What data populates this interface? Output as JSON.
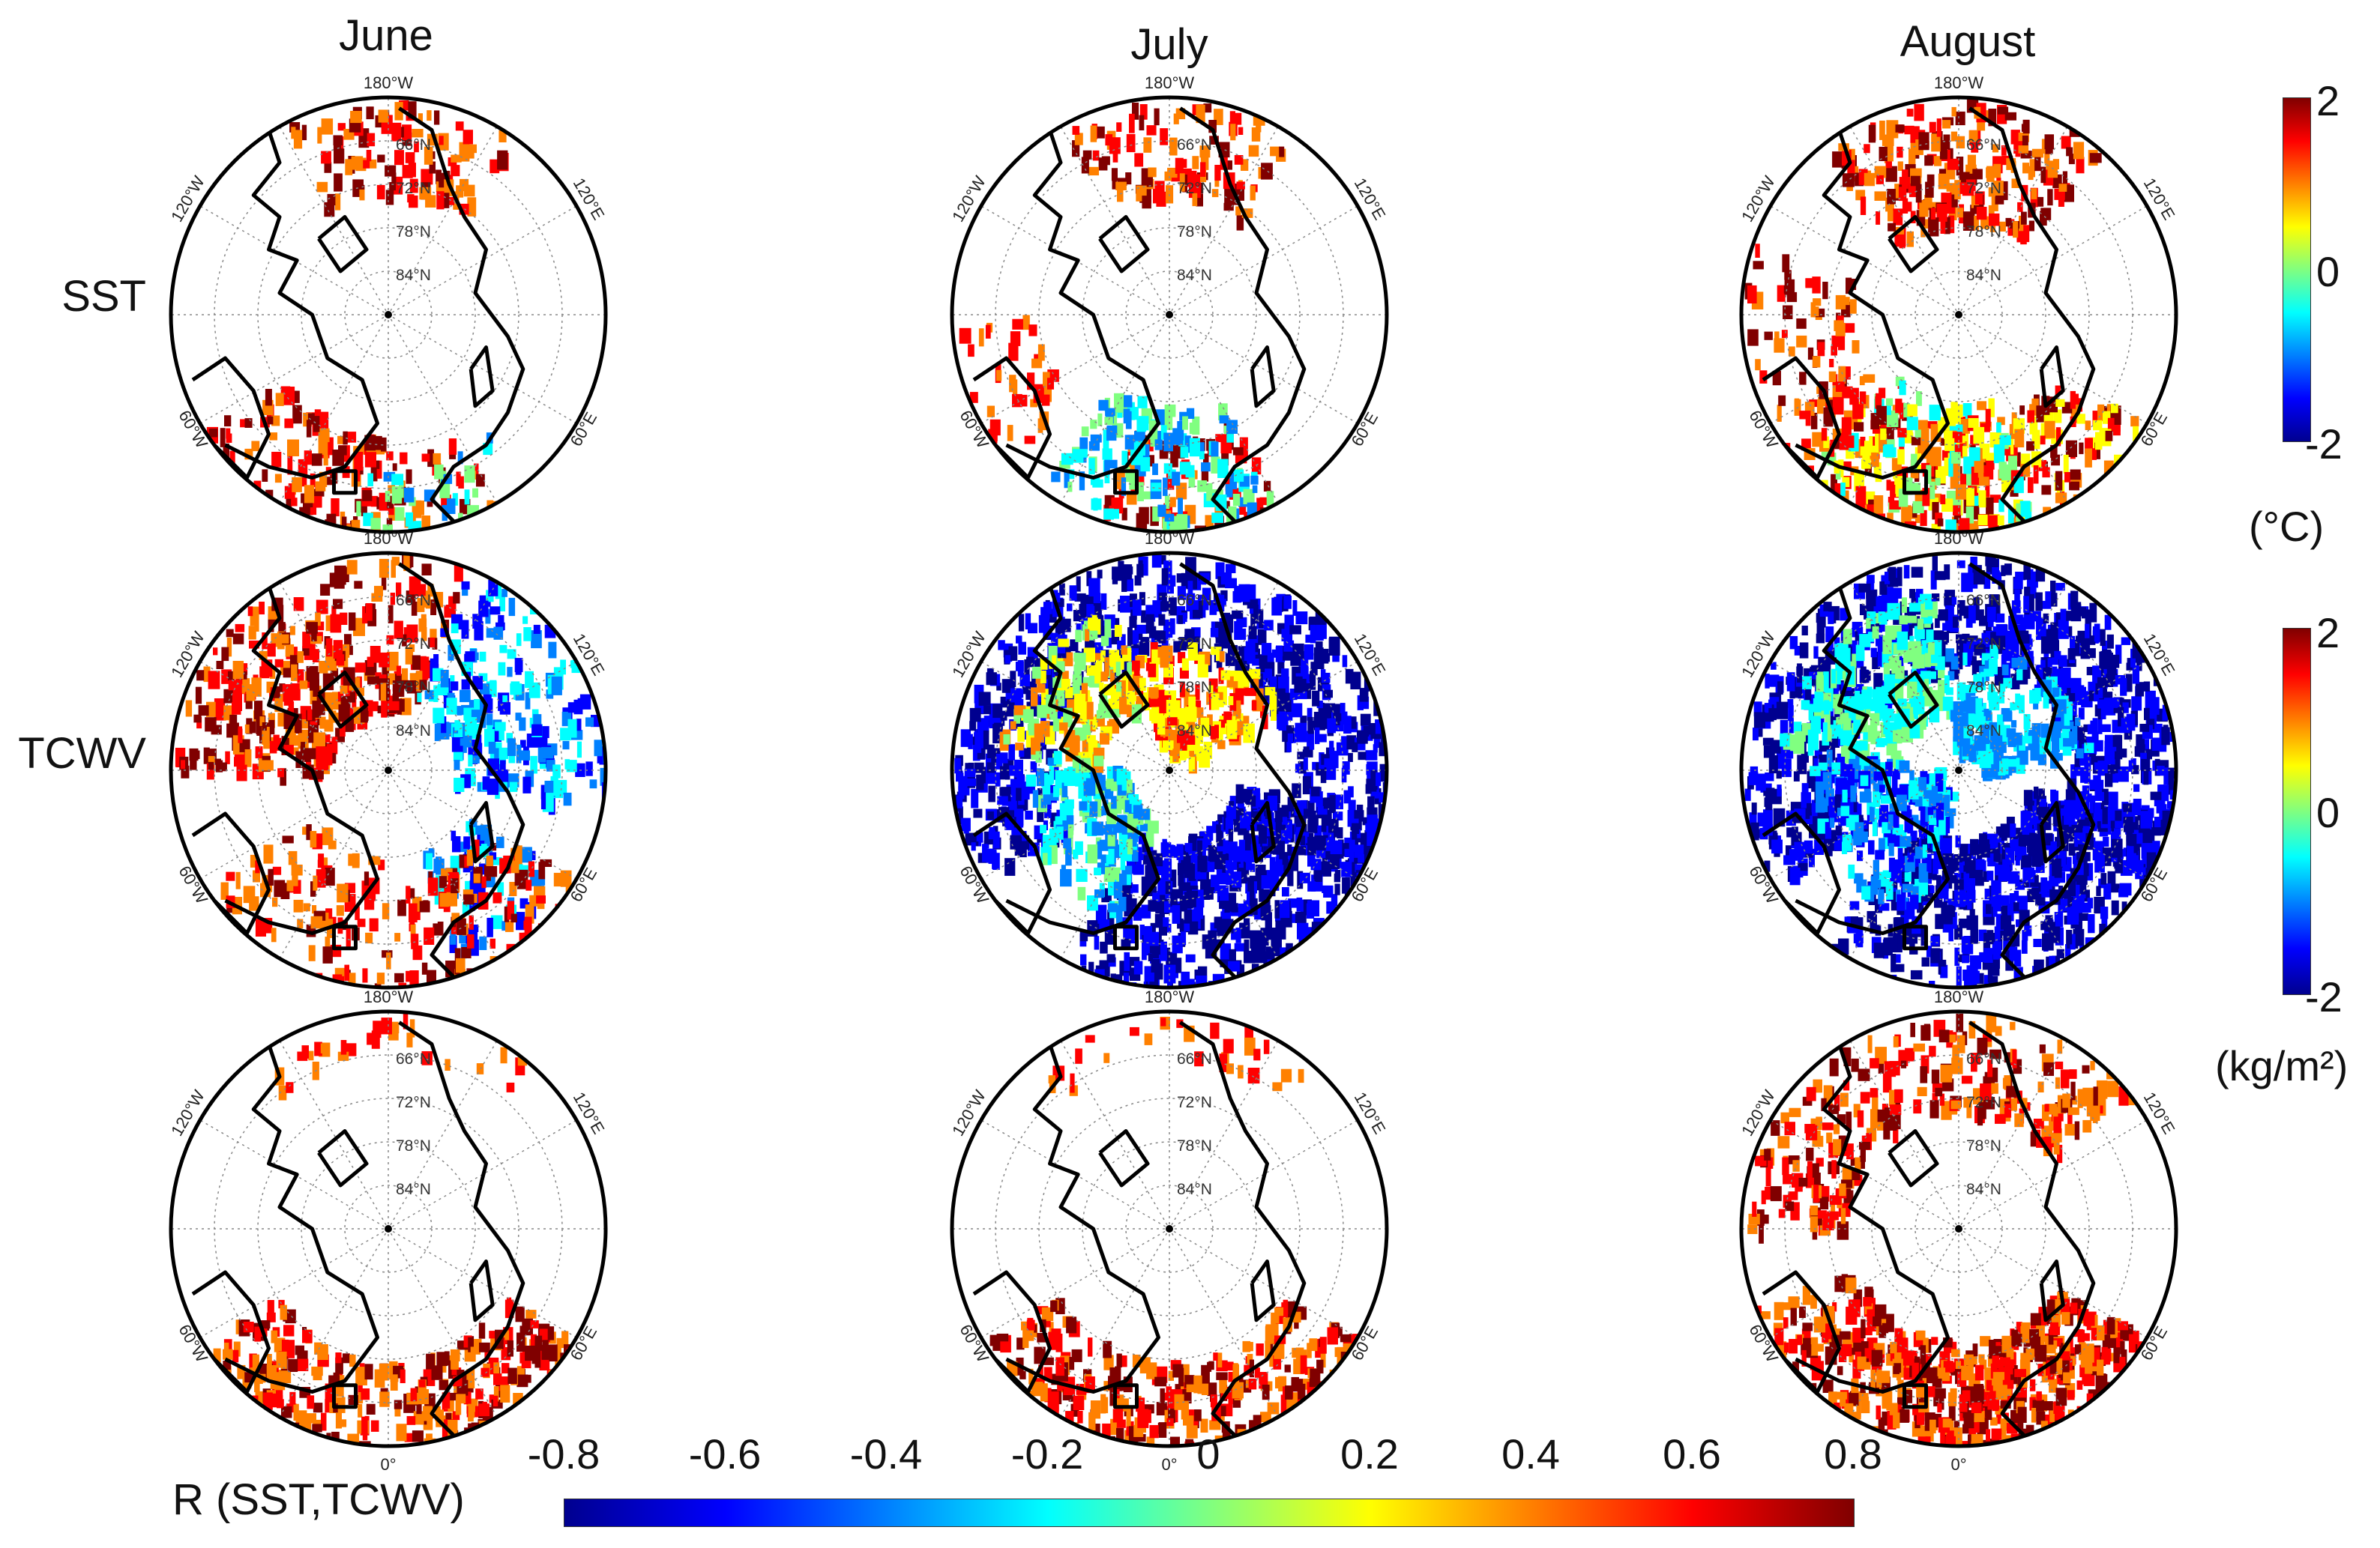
{
  "columns": [
    "June",
    "July",
    "August"
  ],
  "rows": [
    "SST",
    "TCWV",
    ""
  ],
  "map_labels": {
    "lon_top": "180°W",
    "lon_upper_left": "120°W",
    "lon_upper_right": "120°E",
    "lon_lower_left": "60°W",
    "lon_lower_right": "60°E",
    "lon_bottom": "0°",
    "lat": [
      "66°N",
      "72°N",
      "78°N",
      "84°N"
    ]
  },
  "colorbars": {
    "sst": {
      "max": "2",
      "mid": "0",
      "min": "-2",
      "unit": "(°C)"
    },
    "tcwv": {
      "max": "2",
      "mid": "0",
      "min": "-2",
      "unit": "(kg/m²)"
    }
  },
  "r_bar": {
    "label": "R (SST,TCWV)",
    "ticks": [
      "-0.8",
      "-0.6",
      "-0.4",
      "-0.2",
      "0",
      "0.2",
      "0.4",
      "0.6",
      "0.8"
    ]
  },
  "colors": {
    "jet": [
      "#00008f",
      "#0000ff",
      "#0080ff",
      "#00ffff",
      "#80ff80",
      "#ffff00",
      "#ff8000",
      "#ff0000",
      "#800000"
    ]
  }
}
